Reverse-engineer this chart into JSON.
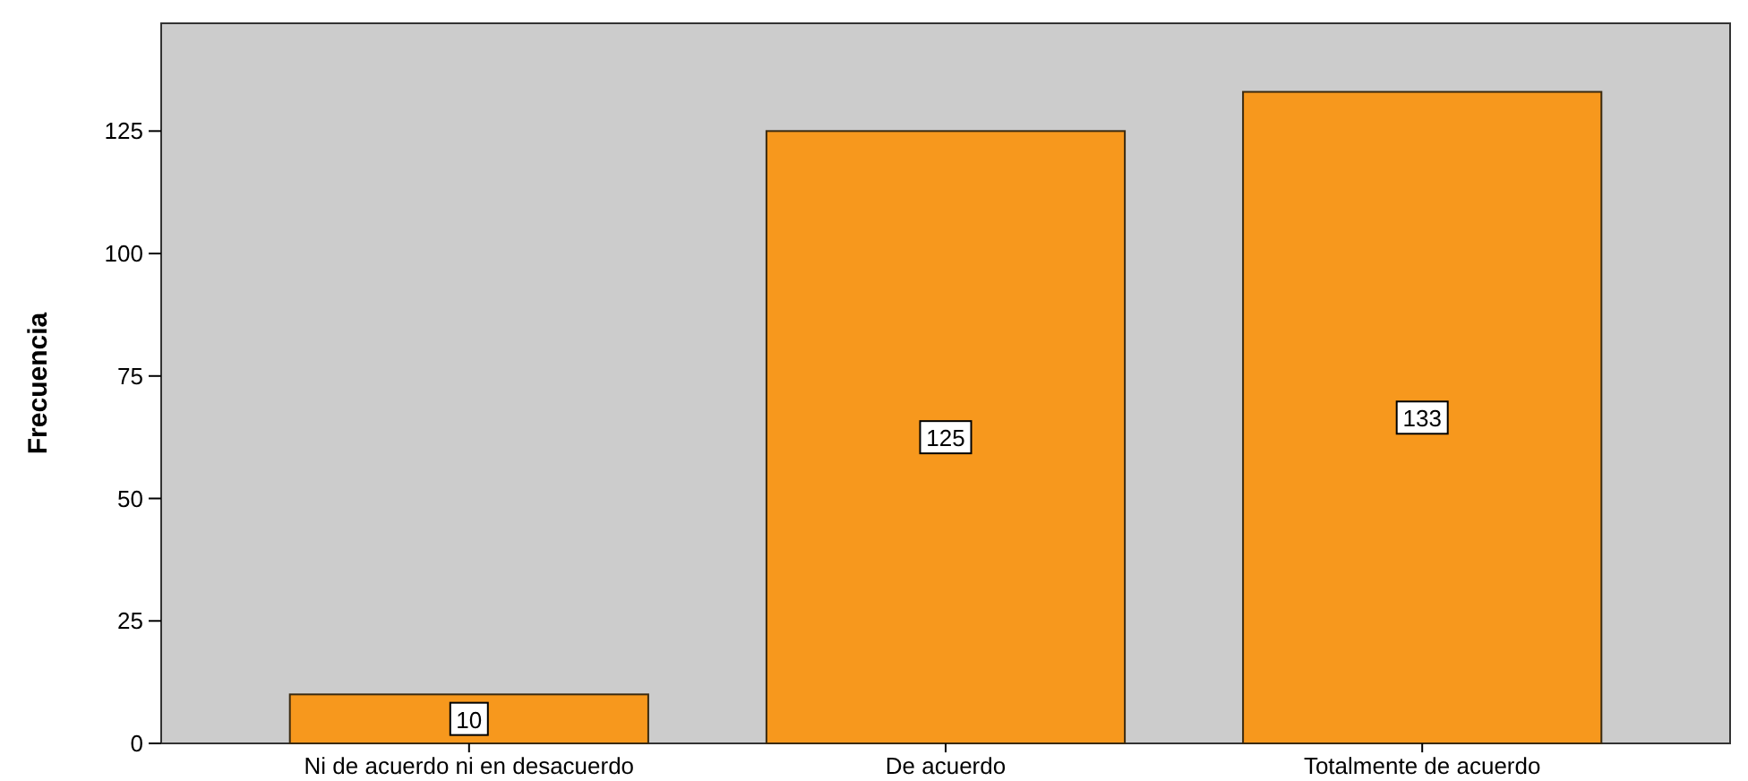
{
  "chart_data": {
    "type": "bar",
    "ylabel": "Frecuencia",
    "categories": [
      "Ni de acuerdo ni en desacuerdo",
      "De acuerdo",
      "Totalmente de acuerdo"
    ],
    "values": [
      10,
      125,
      133
    ],
    "color": "#f7981d",
    "ylim": [
      0,
      147
    ],
    "yticks": [
      0,
      25,
      50,
      75,
      100,
      125
    ],
    "data_labels": true,
    "grid": false
  }
}
